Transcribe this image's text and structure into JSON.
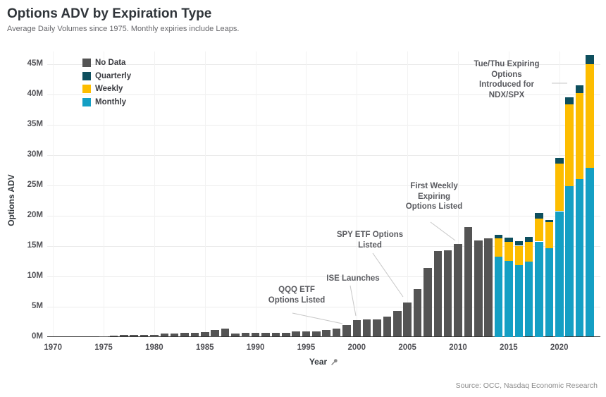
{
  "header": {
    "title": "Options ADV by Expiration Type",
    "subtitle": "Average Daily Volumes since 1975. Monthly expiries include Leaps."
  },
  "footer": {
    "source": "Source: OCC, Nasdaq Economic Research"
  },
  "chart_data": {
    "type": "bar",
    "stacked": true,
    "title": "Options ADV by Expiration Type",
    "subtitle": "Average Daily Volumes since 1975. Monthly expiries include Leaps.",
    "xlabel": "Year",
    "ylabel": "Options ADV",
    "ylim": [
      0,
      45
    ],
    "y_unit": "M",
    "grid": true,
    "legend_position": "top-left-inside",
    "yticks": [
      "0M",
      "5M",
      "10M",
      "15M",
      "20M",
      "25M",
      "30M",
      "35M",
      "40M",
      "45M"
    ],
    "xticks": [
      1970,
      1975,
      1980,
      1985,
      1990,
      1995,
      2000,
      2005,
      2010,
      2015,
      2020
    ],
    "x": [
      1975,
      1976,
      1977,
      1978,
      1979,
      1980,
      1981,
      1982,
      1983,
      1984,
      1985,
      1986,
      1987,
      1988,
      1989,
      1990,
      1991,
      1992,
      1993,
      1994,
      1995,
      1996,
      1997,
      1998,
      1999,
      2000,
      2001,
      2002,
      2003,
      2004,
      2005,
      2006,
      2007,
      2008,
      2009,
      2010,
      2011,
      2012,
      2013,
      2014,
      2015,
      2016,
      2017,
      2018,
      2019,
      2020,
      2021,
      2022,
      2023
    ],
    "colors": {
      "no_data": "#545454",
      "quarterly": "#0e4f5e",
      "weekly": "#fdbd00",
      "monthly": "#149fc4"
    },
    "legend": [
      {
        "label": "No Data",
        "key": "no_data"
      },
      {
        "label": "Quarterly",
        "key": "quarterly"
      },
      {
        "label": "Weekly",
        "key": "weekly"
      },
      {
        "label": "Monthly",
        "key": "monthly"
      }
    ],
    "series": [
      {
        "name": "Monthly",
        "key": "monthly",
        "values": [
          0,
          0,
          0,
          0,
          0,
          0,
          0,
          0,
          0,
          0,
          0,
          0,
          0,
          0,
          0,
          0,
          0,
          0,
          0,
          0,
          0,
          0,
          0,
          0,
          0,
          0,
          0,
          0,
          0,
          0,
          0,
          0,
          0,
          0,
          0,
          0,
          0,
          0,
          0,
          13.2,
          12.5,
          11.8,
          12.4,
          15.7,
          14.6,
          20.7,
          24.8,
          26.0,
          27.8
        ]
      },
      {
        "name": "Weekly",
        "key": "weekly",
        "values": [
          0,
          0,
          0,
          0,
          0,
          0,
          0,
          0,
          0,
          0,
          0,
          0,
          0,
          0,
          0,
          0,
          0,
          0,
          0,
          0,
          0,
          0,
          0,
          0,
          0,
          0,
          0,
          0,
          0,
          0,
          0,
          0,
          0,
          0,
          0,
          0,
          0,
          0,
          0,
          3.0,
          3.1,
          3.2,
          3.2,
          3.8,
          4.3,
          7.8,
          13.5,
          14.2,
          17.1
        ]
      },
      {
        "name": "Quarterly",
        "key": "quarterly",
        "values": [
          0,
          0,
          0,
          0,
          0,
          0,
          0,
          0,
          0,
          0,
          0,
          0,
          0,
          0,
          0,
          0,
          0,
          0,
          0,
          0,
          0,
          0,
          0,
          0,
          0,
          0,
          0,
          0,
          0,
          0,
          0,
          0,
          0,
          0,
          0,
          0,
          0,
          0,
          0,
          0.6,
          0.7,
          0.8,
          0.9,
          0.9,
          0.4,
          1.0,
          1.2,
          1.3,
          1.6
        ]
      },
      {
        "name": "No Data",
        "key": "no_data",
        "values": [
          0.1,
          0.2,
          0.25,
          0.25,
          0.3,
          0.35,
          0.5,
          0.5,
          0.65,
          0.6,
          0.8,
          1.1,
          1.3,
          0.5,
          0.7,
          0.65,
          0.6,
          0.6,
          0.65,
          0.85,
          0.9,
          0.9,
          1.1,
          1.4,
          1.9,
          2.7,
          2.9,
          2.9,
          3.3,
          4.2,
          5.6,
          7.9,
          11.3,
          14.1,
          14.2,
          15.3,
          18.1,
          15.9,
          16.2,
          0,
          0,
          0,
          0,
          0,
          0,
          0,
          0,
          0,
          0
        ]
      }
    ],
    "annotations": [
      {
        "id": "qqq",
        "lines": [
          "QQQ ETF",
          "Options Listed"
        ],
        "target_year": 1999
      },
      {
        "id": "ise",
        "lines": [
          "ISE Launches"
        ],
        "target_year": 2000
      },
      {
        "id": "spy",
        "lines": [
          "SPY ETF Options",
          "Listed"
        ],
        "target_year": 2005
      },
      {
        "id": "first-weekly",
        "lines": [
          "First Weekly",
          "Expiring",
          "Options Listed"
        ],
        "target_year": 2010
      },
      {
        "id": "tue-thu",
        "lines": [
          "Tue/Thu Expiring",
          "Options",
          "Introduced for",
          "NDX/SPX"
        ],
        "target_year": 2022
      }
    ]
  }
}
